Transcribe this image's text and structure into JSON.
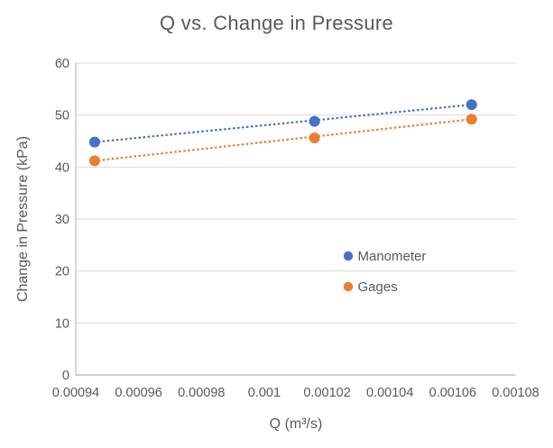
{
  "title": "Q vs. Change in Pressure",
  "axes": {
    "x_title": "Q (m³/s)",
    "y_title": "Change in Pressure (kPa)"
  },
  "chart_data": {
    "type": "scatter",
    "title": "Q vs. Change in Pressure",
    "xlabel": "Q (m³/s)",
    "ylabel": "Change in Pressure (kPa)",
    "x": [
      0.000946,
      0.001016,
      0.001066
    ],
    "series": [
      {
        "name": "Manometer",
        "color": "#4472C4",
        "values": [
          44.8,
          48.8,
          52.0
        ],
        "trendline": "linear-dotted"
      },
      {
        "name": "Gages",
        "color": "#ED7D31",
        "values": [
          41.2,
          45.6,
          49.2
        ],
        "trendline": "linear-dotted"
      }
    ],
    "xlim": [
      0.00094,
      0.00108
    ],
    "ylim": [
      0,
      60
    ],
    "x_ticks": [
      "0.00094",
      "0.00096",
      "0.00098",
      "0.001",
      "0.00102",
      "0.00104",
      "0.00106",
      "0.00108"
    ],
    "y_ticks": [
      "0",
      "10",
      "20",
      "30",
      "40",
      "50",
      "60"
    ],
    "grid": true,
    "legend_position": "inside-right",
    "marker_style": "circle",
    "trendline_style": "dotted"
  },
  "colors": {
    "series_manometer": "#4472C4",
    "series_gages": "#ED7D31",
    "gridline": "#D9D9D9",
    "axis_line": "#BFBFBF",
    "text": "#595959",
    "background": "#FFFFFF"
  },
  "legend": {
    "items": [
      {
        "label": "Manometer",
        "color": "#4472C4"
      },
      {
        "label": "Gages",
        "color": "#ED7D31"
      }
    ]
  }
}
